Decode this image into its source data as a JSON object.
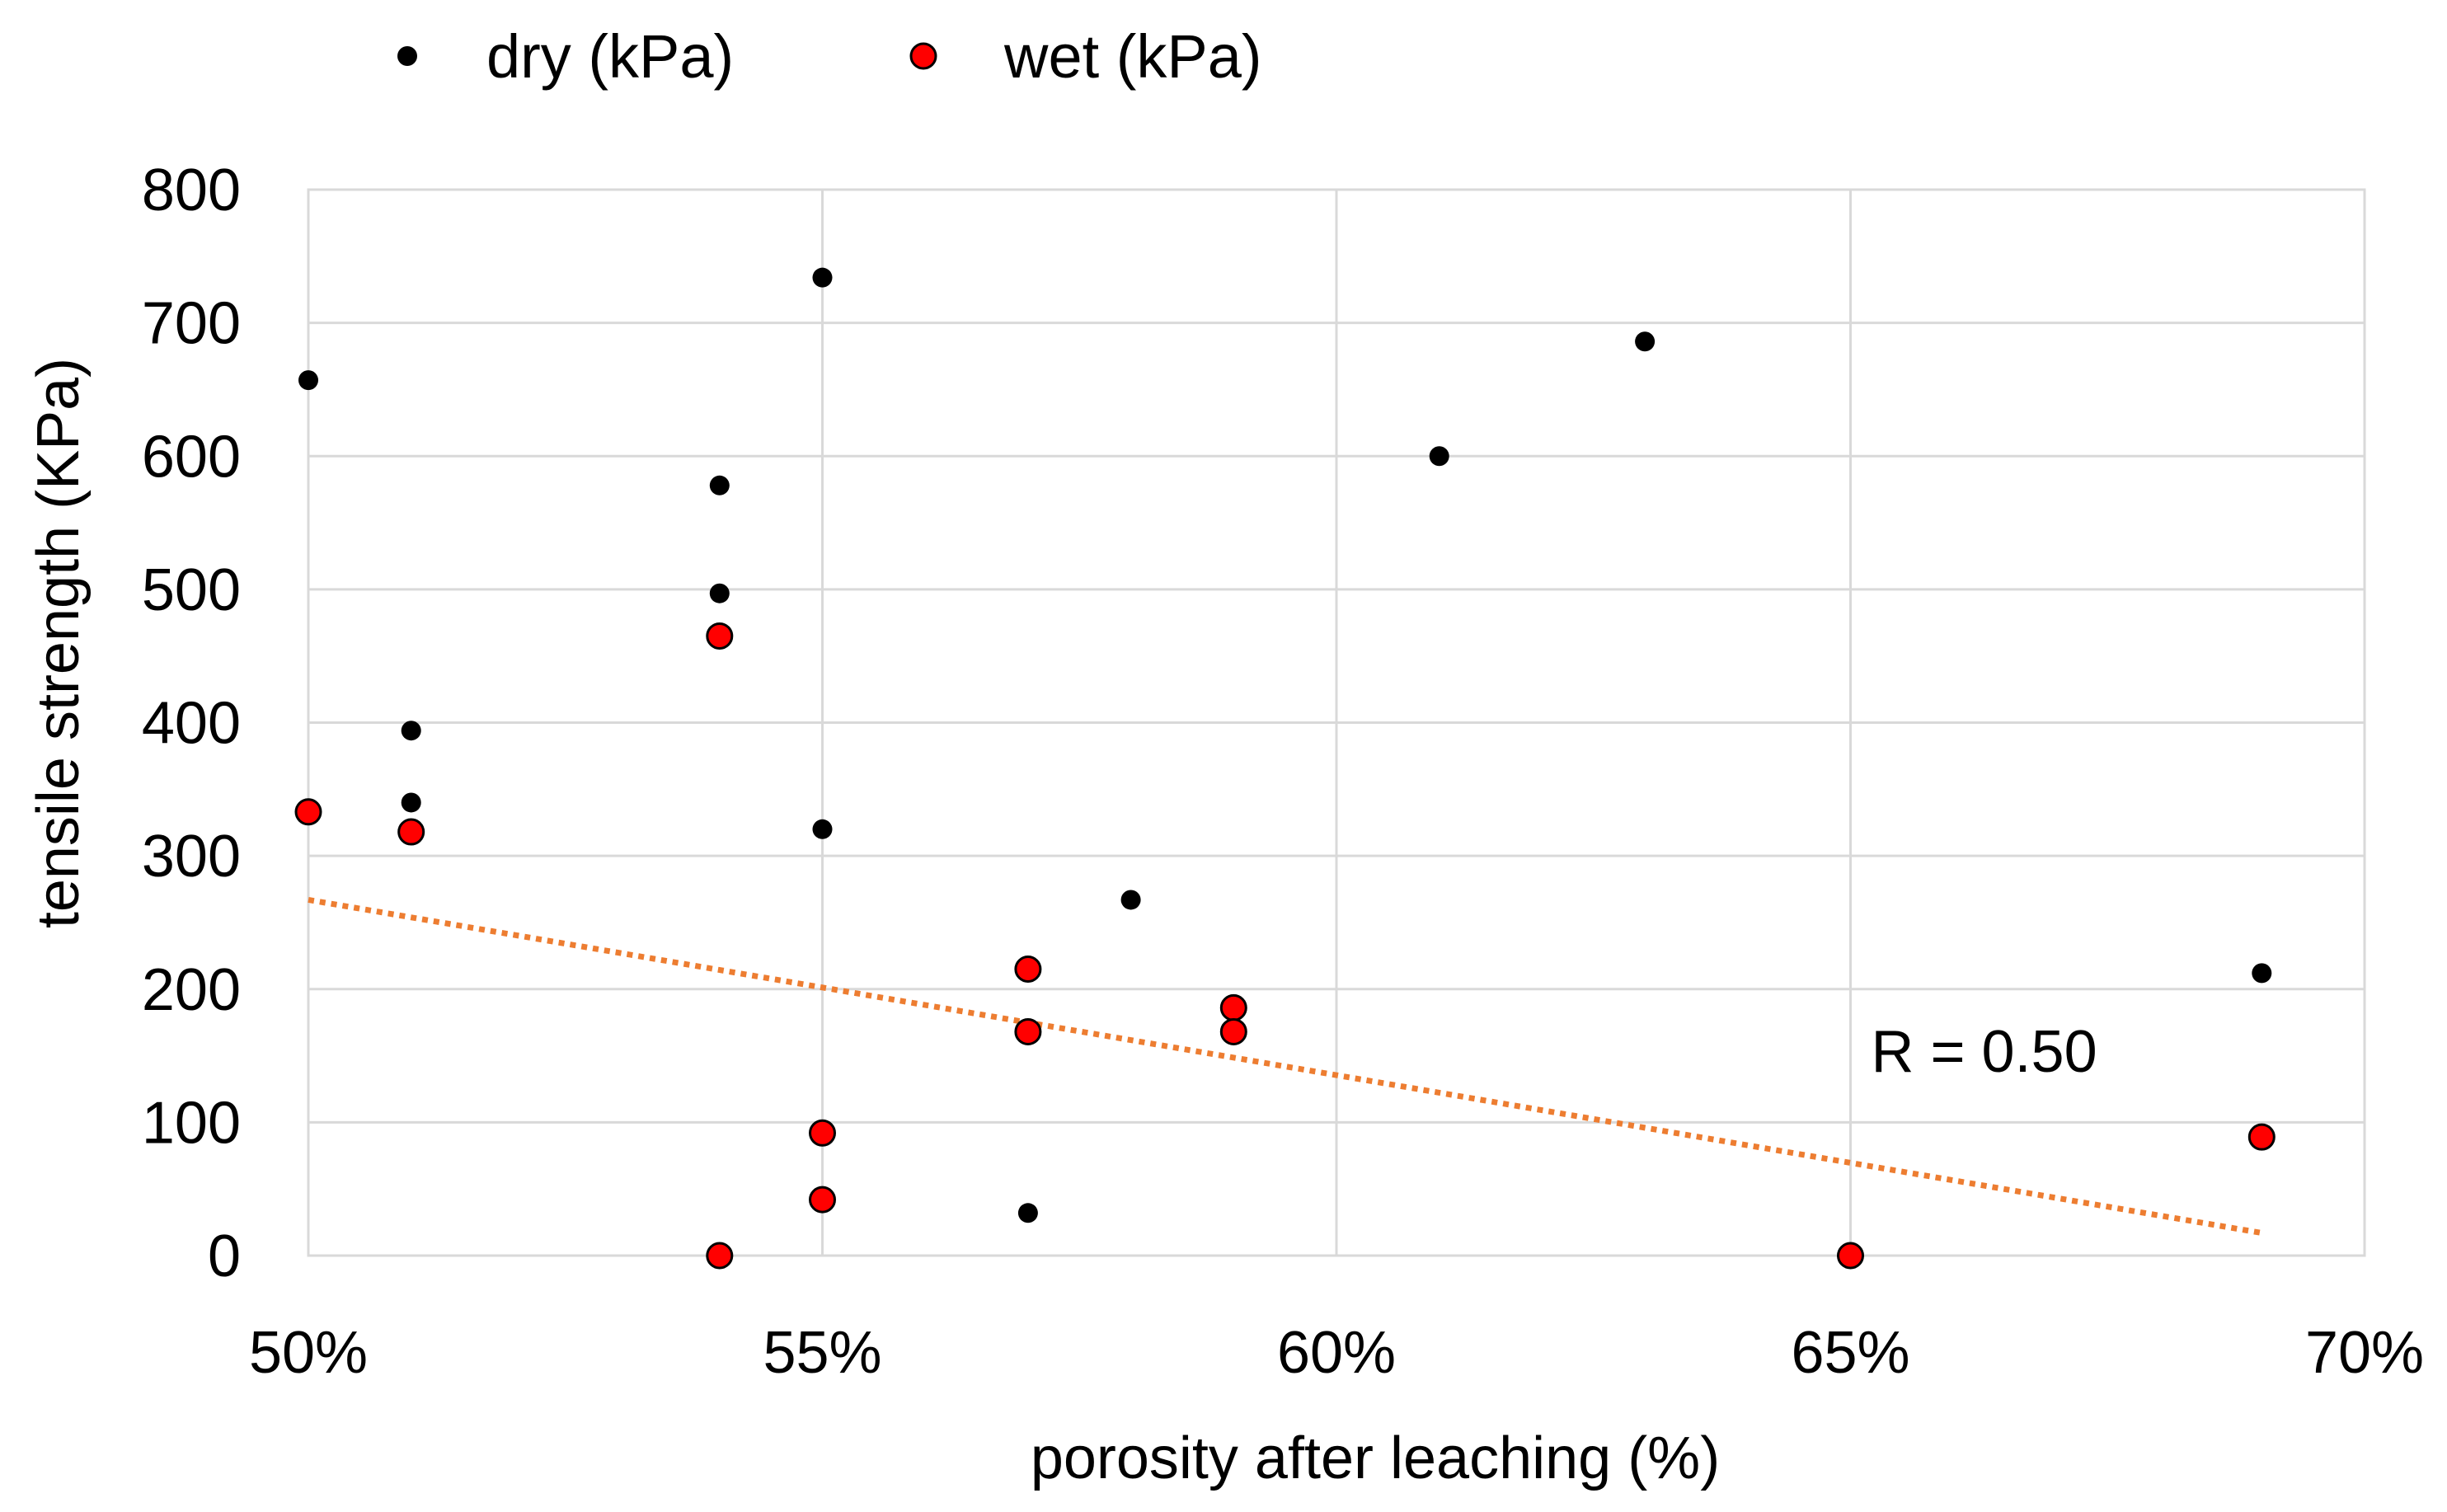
{
  "chart_data": {
    "type": "scatter",
    "title": "",
    "xlabel": "porosity after leaching  (%)",
    "ylabel": "tensile strength (KPa)",
    "xlim": [
      50,
      70
    ],
    "ylim": [
      0,
      800
    ],
    "x_ticks": [
      50,
      55,
      60,
      65,
      70
    ],
    "x_tick_labels": [
      "50%",
      "55%",
      "60%",
      "65%",
      "70%"
    ],
    "y_ticks": [
      0,
      100,
      200,
      300,
      400,
      500,
      600,
      700,
      800
    ],
    "y_tick_labels": [
      "0",
      "100",
      "200",
      "300",
      "400",
      "500",
      "600",
      "700",
      "800"
    ],
    "grid": true,
    "legend_position": "top",
    "series": [
      {
        "name": "dry (kPa)",
        "color": "#000000",
        "marker": "small-filled-circle",
        "points": [
          {
            "x": 50,
            "y": 657
          },
          {
            "x": 51,
            "y": 394
          },
          {
            "x": 51,
            "y": 340
          },
          {
            "x": 54,
            "y": 578
          },
          {
            "x": 54,
            "y": 497
          },
          {
            "x": 55,
            "y": 734
          },
          {
            "x": 55,
            "y": 320
          },
          {
            "x": 57,
            "y": 32
          },
          {
            "x": 58,
            "y": 267
          },
          {
            "x": 61,
            "y": 600
          },
          {
            "x": 63,
            "y": 686
          },
          {
            "x": 69,
            "y": 212
          }
        ]
      },
      {
        "name": "wet (kPa)",
        "color": "#ff0000",
        "marker": "large-outlined-circle",
        "points": [
          {
            "x": 50,
            "y": 333
          },
          {
            "x": 51,
            "y": 318
          },
          {
            "x": 54,
            "y": 465
          },
          {
            "x": 54,
            "y": 0
          },
          {
            "x": 55,
            "y": 92
          },
          {
            "x": 55,
            "y": 42
          },
          {
            "x": 57,
            "y": 215
          },
          {
            "x": 57,
            "y": 168
          },
          {
            "x": 59,
            "y": 186
          },
          {
            "x": 59,
            "y": 168
          },
          {
            "x": 65,
            "y": 0
          },
          {
            "x": 69,
            "y": 89
          }
        ]
      }
    ],
    "trendline": {
      "series": "wet (kPa)",
      "style": "dotted",
      "color": "#ed7d31",
      "x_start": 50,
      "y_start": 267,
      "x_end": 69,
      "y_end": 17
    },
    "annotations": [
      {
        "text": "R = 0.50",
        "x": 65.2,
        "y": 138
      }
    ]
  }
}
